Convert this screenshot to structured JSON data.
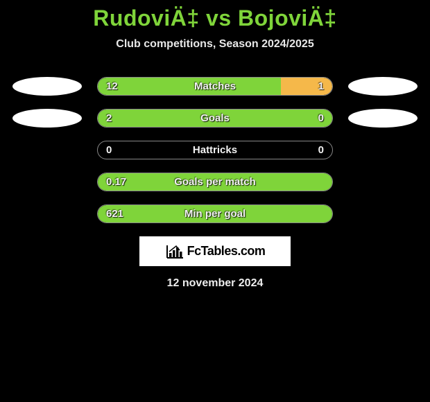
{
  "title": "RudoviÄ‡ vs BojoviÄ‡",
  "subtitle": "Club competitions, Season 2024/2025",
  "date": "12 november 2024",
  "logo_text": "FcTables.com",
  "colors": {
    "left_fill": "#7fd43a",
    "right_fill": "#f5b84a",
    "background": "#000000",
    "title_color": "#7fd43a",
    "bar_border": "#888888",
    "ellipse_color": "#ffffff"
  },
  "rows": [
    {
      "label": "Matches",
      "left_value": "12",
      "right_value": "1",
      "left_pct": 78,
      "right_pct": 22,
      "show_ellipses": true
    },
    {
      "label": "Goals",
      "left_value": "2",
      "right_value": "0",
      "left_pct": 100,
      "right_pct": 0,
      "show_ellipses": true
    },
    {
      "label": "Hattricks",
      "left_value": "0",
      "right_value": "0",
      "left_pct": 0,
      "right_pct": 0,
      "show_ellipses": false
    },
    {
      "label": "Goals per match",
      "left_value": "0.17",
      "right_value": "",
      "left_pct": 100,
      "right_pct": 0,
      "show_ellipses": false
    },
    {
      "label": "Min per goal",
      "left_value": "621",
      "right_value": "",
      "left_pct": 100,
      "right_pct": 0,
      "show_ellipses": false
    }
  ]
}
